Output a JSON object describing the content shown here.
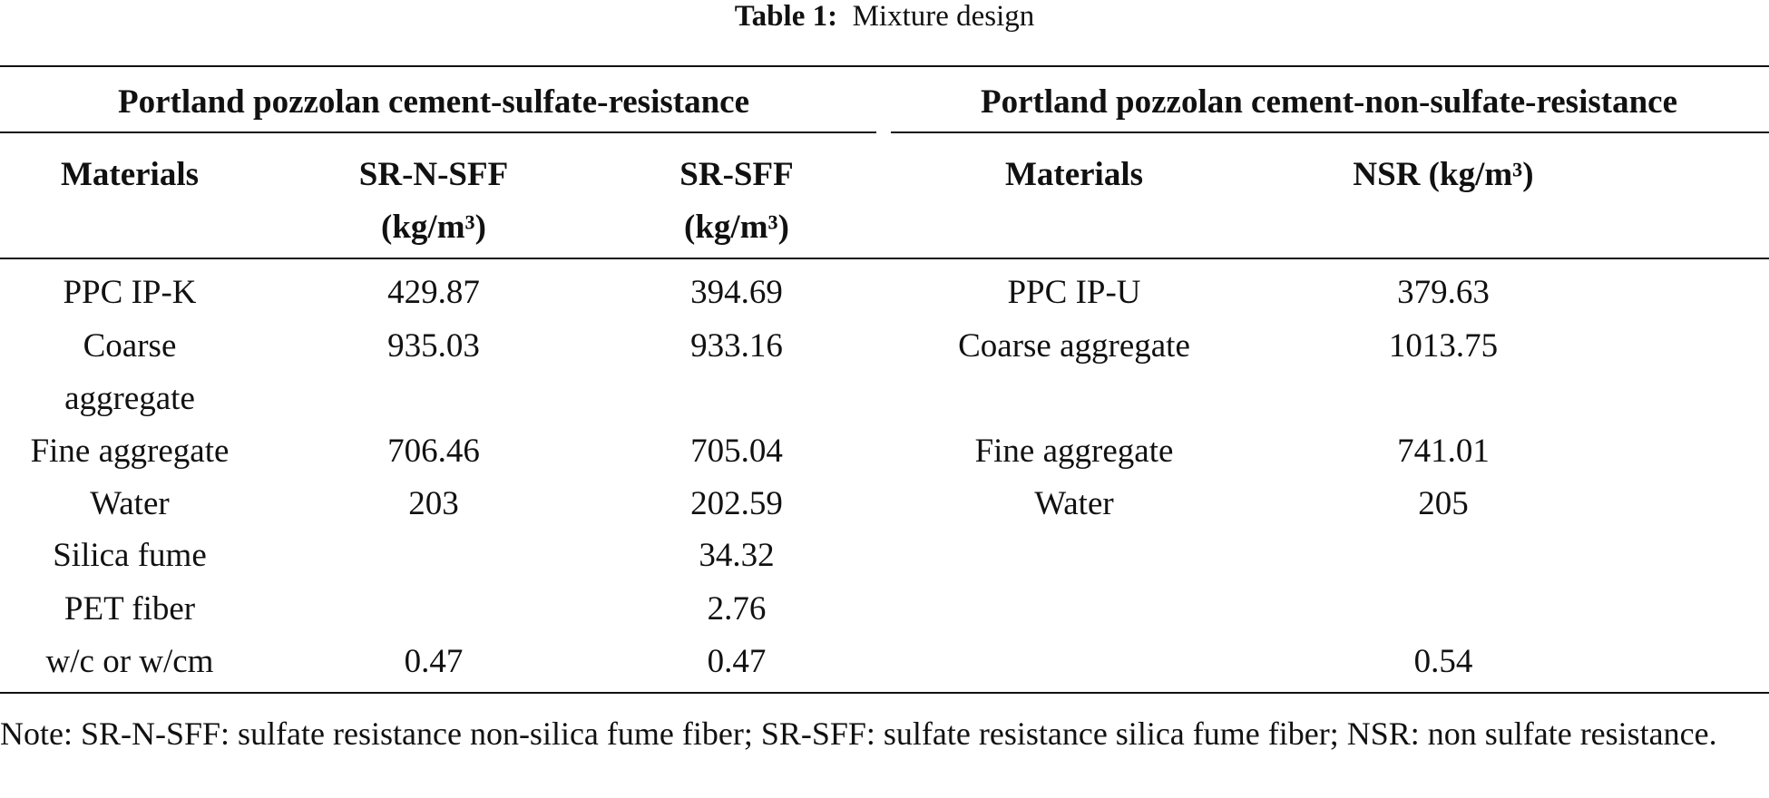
{
  "caption": {
    "label": "Table 1:",
    "text": "Mixture design"
  },
  "table": {
    "groups": [
      "Portland pozzolan cement-sulfate-resistance",
      "Portland pozzolan cement-non-sulfate-resistance"
    ],
    "headers": [
      "Materials",
      "SR-N-SFF\n(kg/m³)",
      "SR-SFF\n(kg/m³)",
      "Materials",
      "NSR (kg/m³)"
    ],
    "rows": [
      [
        "PPC IP-K",
        "429.87",
        "394.69",
        "PPC IP-U",
        "379.63"
      ],
      [
        "Coarse\naggregate",
        "935.03",
        "933.16",
        "Coarse aggregate",
        "1013.75"
      ],
      [
        "Fine aggregate",
        "706.46",
        "705.04",
        "Fine aggregate",
        "741.01"
      ],
      [
        "Water",
        "203",
        "202.59",
        "Water",
        "205"
      ],
      [
        "Silica fume",
        null,
        "34.32",
        null,
        null
      ],
      [
        "PET fiber",
        null,
        "2.76",
        null,
        null
      ],
      [
        "w/c or w/cm",
        "0.47",
        "0.47",
        null,
        "0.54"
      ]
    ]
  },
  "note": "Note: SR-N-SFF: sulfate resistance non-silica fume fiber; SR-SFF: sulfate resistance silica fume fiber; NSR: non sulfate resistance."
}
